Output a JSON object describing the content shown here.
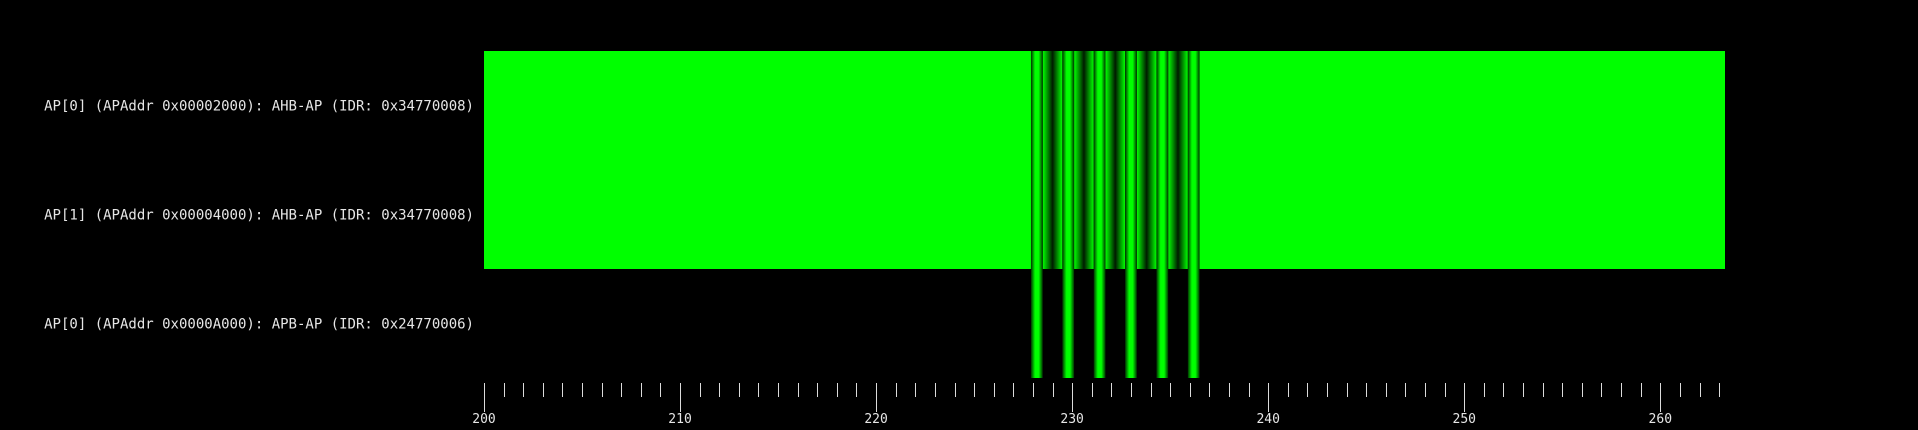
{
  "chart_data": {
    "type": "heatmap",
    "title": "",
    "xlabel": "",
    "ylabel": "",
    "xlim": [
      200,
      263.3
    ],
    "x_ticks": [
      200,
      210,
      220,
      230,
      240,
      250,
      260
    ],
    "x_minor_tick_step": 1,
    "rows": [
      {
        "label": "AP[0] (APAddr 0x00002000): AHB-AP (IDR: 0x34770008)",
        "segments": [
          {
            "start": 200,
            "end": 227.9,
            "level": 1
          },
          {
            "start": 227.9,
            "end": 236.5,
            "level": "striped"
          },
          {
            "start": 236.5,
            "end": 263.3,
            "level": 1
          }
        ]
      },
      {
        "label": "AP[1] (APAddr 0x00004000): AHB-AP (IDR: 0x34770008)",
        "segments": [
          {
            "start": 200,
            "end": 227.9,
            "level": 1
          },
          {
            "start": 227.9,
            "end": 236.5,
            "level": "striped"
          },
          {
            "start": 236.5,
            "end": 263.3,
            "level": 1
          }
        ]
      },
      {
        "label": "AP[0] (APAddr 0x0000A000): APB-AP (IDR: 0x24770006)",
        "segments": [
          {
            "start": 227.9,
            "end": 236.5,
            "level": "striped"
          }
        ]
      }
    ],
    "stripes": [
      {
        "start": 227.9,
        "end": 228.5
      },
      {
        "start": 229.5,
        "end": 230.1
      },
      {
        "start": 231.1,
        "end": 231.7
      },
      {
        "start": 232.7,
        "end": 233.3
      },
      {
        "start": 234.3,
        "end": 234.9
      },
      {
        "start": 235.9,
        "end": 236.5
      }
    ],
    "colors": {
      "background": "#000000",
      "full": "#00ff00",
      "text": "#e6e6e6",
      "tick": "#dcdcdc"
    },
    "grid": false,
    "legend": "none"
  }
}
